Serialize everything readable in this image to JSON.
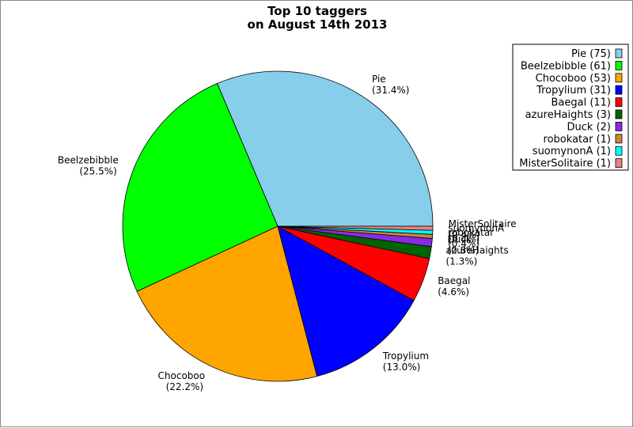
{
  "chart_data": {
    "type": "pie",
    "title": "Top 10 taggers",
    "subtitle": "on August 14th 2013",
    "legend_position": "top-right",
    "slices": [
      {
        "name": "Pie",
        "value": 75,
        "legend_label": "Pie (75)",
        "label": "Pie",
        "percent_label": "(31.4%)",
        "color": "#87CEEB"
      },
      {
        "name": "Beelzebibble",
        "value": 61,
        "legend_label": "Beelzebibble (61)",
        "label": "Beelzebibble",
        "percent_label": "(25.5%)",
        "color": "#00FF00"
      },
      {
        "name": "Chocoboo",
        "value": 53,
        "legend_label": "Chocoboo (53)",
        "label": "Chocoboo",
        "percent_label": "(22.2%)",
        "color": "#FFA500"
      },
      {
        "name": "Tropylium",
        "value": 31,
        "legend_label": "Tropylium (31)",
        "label": "Tropylium",
        "percent_label": "(13.0%)",
        "color": "#0000FF"
      },
      {
        "name": "Baegal",
        "value": 11,
        "legend_label": "Baegal (11)",
        "label": "Baegal",
        "percent_label": "(4.6%)",
        "color": "#FF0000"
      },
      {
        "name": "azureHaights",
        "value": 3,
        "legend_label": "azureHaights (3)",
        "label": "azureHaights",
        "percent_label": "(1.3%)",
        "color": "#006400"
      },
      {
        "name": "Duck",
        "value": 2,
        "legend_label": "Duck (2)",
        "label": "Duck",
        "percent_label": "(0.8%)",
        "color": "#8A2BE2"
      },
      {
        "name": "robokatar",
        "value": 1,
        "legend_label": "robokatar (1)",
        "label": "robokatar",
        "percent_label": "(0.4%)",
        "color": "#CD853F"
      },
      {
        "name": "suomynonA",
        "value": 1,
        "legend_label": "suomynonA (1)",
        "label": "suomynonA",
        "percent_label": "(0.4%)",
        "color": "#00FFFF"
      },
      {
        "name": "MisterSolitaire",
        "value": 1,
        "legend_label": "MisterSolitaire (1)",
        "label": "MisterSolitaire",
        "percent_label": "(0.4%)",
        "color": "#F08080"
      }
    ]
  }
}
